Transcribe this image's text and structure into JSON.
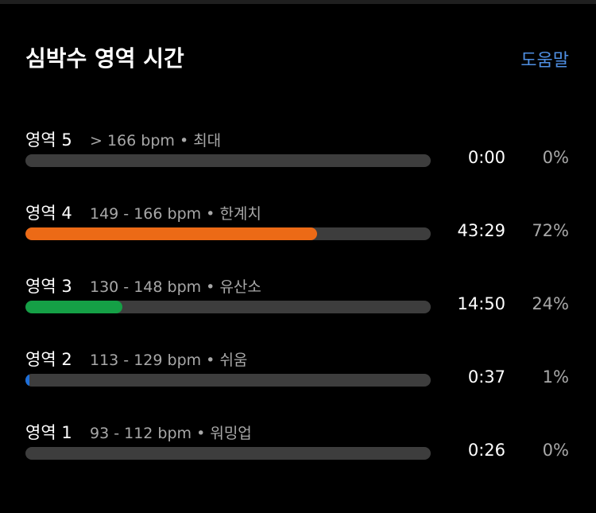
{
  "header": {
    "title": "심박수 영역 시간",
    "help": "도움말"
  },
  "zones": [
    {
      "name": "영역 5",
      "range": "> 166 bpm",
      "level": "최대",
      "time": "0:00",
      "percent": {
        "value": 0,
        "label": "0%"
      },
      "color": "#e53935"
    },
    {
      "name": "영역 4",
      "range": "149 - 166 bpm",
      "level": "한계치",
      "time": "43:29",
      "percent": {
        "value": 72,
        "label": "72%"
      },
      "color": "#ec6a16"
    },
    {
      "name": "영역 3",
      "range": "130 - 148 bpm",
      "level": "유산소",
      "time": "14:50",
      "percent": {
        "value": 24,
        "label": "24%"
      },
      "color": "#15a046"
    },
    {
      "name": "영역 2",
      "range": "113 - 129 bpm",
      "level": "쉬움",
      "time": "0:37",
      "percent": {
        "value": 1,
        "label": "1%"
      },
      "color": "#1e6fd9"
    },
    {
      "name": "영역 1",
      "range": "93 - 112 bpm",
      "level": "워밍업",
      "time": "0:26",
      "percent": {
        "value": 0,
        "label": "0%"
      },
      "color": "#9e9e9e"
    }
  ]
}
